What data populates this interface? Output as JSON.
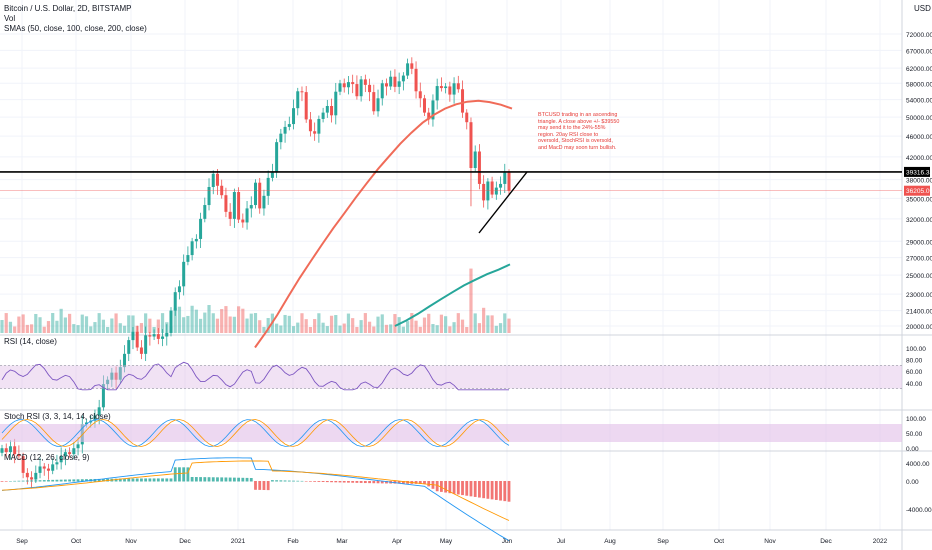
{
  "header": {
    "symbol_line": "Bitcoin / U.S. Dollar, 2D, BITSTAMP",
    "vol_label": "Vol",
    "sma_label": "SMAs (50, close, 100, close, 200, close)",
    "currency": "USD",
    "rsi_label": "RSI (14, close)",
    "stoch_label": "Stoch RSI (3, 3, 14, 14, close)",
    "macd_label": "MACD (12, 26, close, 9)"
  },
  "annotation": "BTCUSD trading in an ascending triangle. A close above +/- $39550 may send it to the 24%-55% region. 20ay RSI close to oversold, StochRSI is oversold, and MacD may soon turn bullish.",
  "price_badges": {
    "resistance": "39316.33",
    "last": "36205.09"
  },
  "colors": {
    "up": "#26a69a",
    "down": "#ef5350",
    "sma50": "#f06b58",
    "sma200": "#26a69a",
    "rsi": "#7e57c2",
    "band": "#e1bee7",
    "macd": "#2196f3",
    "signal": "#ff9800"
  },
  "chart_data": {
    "type": "candlestick",
    "price_axis": {
      "scale": "log",
      "ticks": [
        "72000.00",
        "67000.00",
        "62000.00",
        "58000.00",
        "54000.00",
        "50000.00",
        "46000.00",
        "42000.00",
        "38000.00",
        "35000.00",
        "32000.00",
        "29000.00",
        "27000.00",
        "25000.00",
        "23000.00",
        "21400.00",
        "20000.00"
      ]
    },
    "time_axis": {
      "labels": [
        "Sep",
        "Oct",
        "Nov",
        "Dec",
        "2021",
        "Feb",
        "Mar",
        "Apr",
        "May",
        "Jun",
        "Jul",
        "Aug",
        "Sep",
        "Oct",
        "Nov",
        "Dec",
        "2022"
      ]
    },
    "horizontal_levels": [
      39316.33,
      36205.09
    ],
    "close_prices": [
      11700,
      11500,
      11800,
      11400,
      11300,
      10500,
      10300,
      10200,
      10500,
      10800,
      10700,
      10600,
      10900,
      11000,
      11300,
      11500,
      11400,
      11700,
      11900,
      13000,
      13100,
      13200,
      13500,
      14000,
      15500,
      15800,
      16300,
      15800,
      16700,
      17700,
      18800,
      19500,
      18200,
      17700,
      19200,
      19100,
      19300,
      18900,
      19100,
      19400,
      21400,
      23200,
      23800,
      26500,
      27300,
      29000,
      29300,
      32000,
      34000,
      36800,
      39000,
      37000,
      35500,
      33000,
      32000,
      36000,
      31900,
      31500,
      33500,
      34000,
      37500,
      33500,
      35400,
      38300,
      39200,
      44800,
      46500,
      47900,
      48500,
      52000,
      56000,
      55800,
      49500,
      47000,
      46500,
      49600,
      51000,
      52500,
      50400,
      55900,
      58000,
      57000,
      58300,
      57800,
      54800,
      59000,
      57600,
      55800,
      51300,
      54300,
      58000,
      57200,
      59700,
      57100,
      58500,
      60000,
      63300,
      61800,
      56000,
      54300,
      51000,
      49500,
      53800,
      57300,
      56800,
      57200,
      55200,
      58000,
      56500,
      51000,
      48900,
      40000,
      43000,
      37300,
      34700,
      37700,
      35600,
      36700,
      37300,
      39200,
      36200
    ],
    "sma50": {
      "type": "line",
      "color": "#f06b58",
      "values": [
        18200,
        19500,
        21000,
        22800,
        24700,
        26600,
        28600,
        30700,
        32800,
        35100,
        37400,
        39800,
        42100,
        44500,
        46700,
        48800,
        50500,
        51900,
        52900,
        53500,
        53700,
        53400,
        52800,
        51900
      ]
    },
    "sma200": {
      "type": "line",
      "color": "#26a69a",
      "values": [
        20000,
        20500,
        21100,
        21800,
        22500,
        23200,
        23900,
        24500,
        25100,
        25600,
        26200
      ]
    },
    "rsi": {
      "range": [
        0,
        100
      ],
      "ticks": [
        "100.00",
        "80.00",
        "60.00",
        "40.00"
      ],
      "band": [
        30,
        70
      ],
      "last": 33
    },
    "stoch_rsi": {
      "range": [
        0,
        100
      ],
      "ticks": [
        "100.00",
        "50.00",
        "0.00"
      ],
      "band": [
        20,
        80
      ]
    },
    "macd": {
      "ticks": [
        "4000.00",
        "0.00",
        "-4000.00"
      ]
    }
  }
}
